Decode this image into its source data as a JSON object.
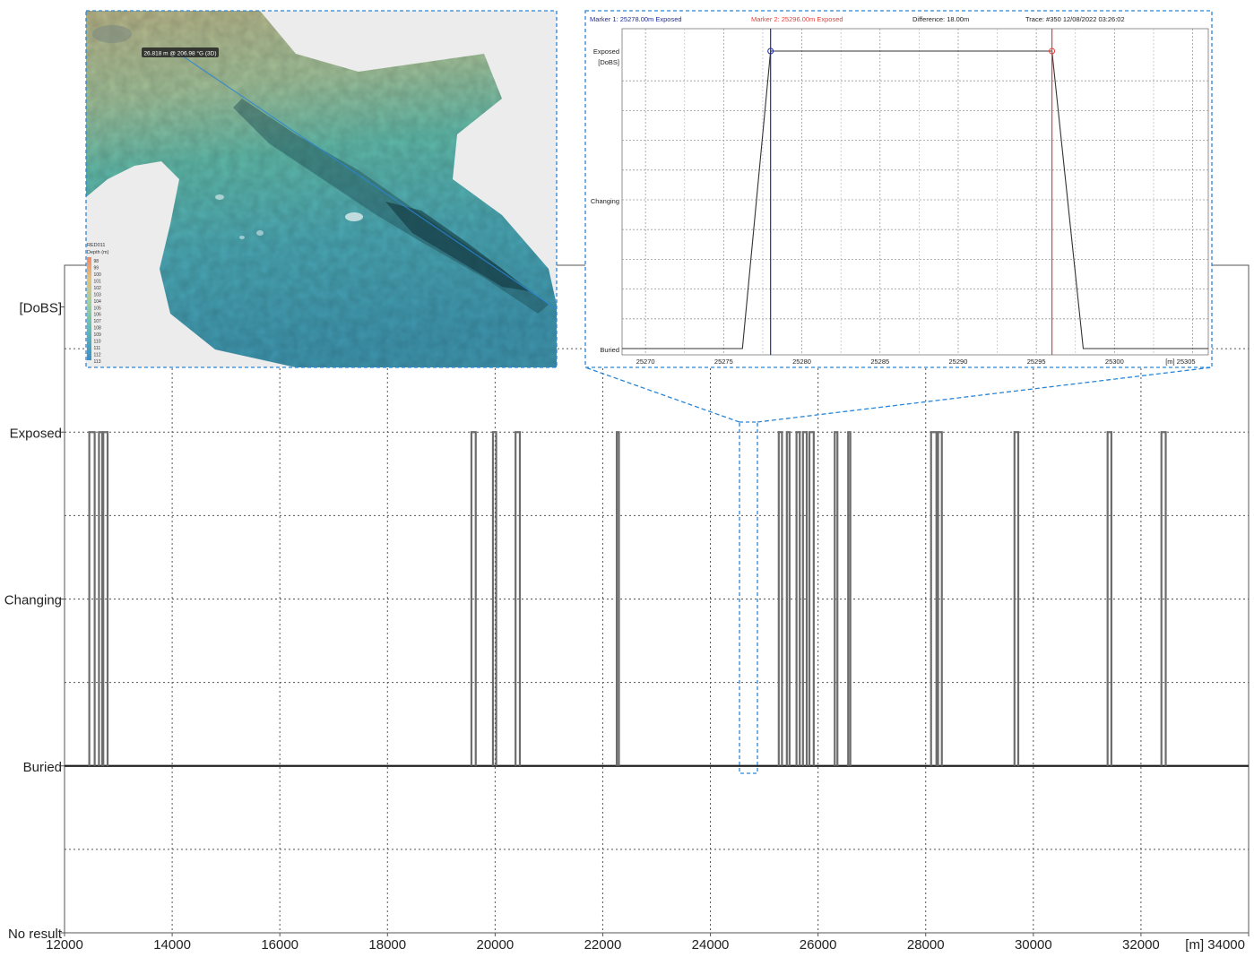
{
  "main_chart": {
    "x_range": [
      12000,
      34000
    ],
    "y_levels": [
      "No result",
      "Buried",
      "Changing",
      "Exposed",
      "[DoBS]"
    ],
    "y_tick_labels": [
      {
        "label": "No result",
        "level": 0
      },
      {
        "label": "Buried",
        "level": 2
      },
      {
        "label": "Changing",
        "level": 4
      },
      {
        "label": "Exposed",
        "level": 6
      },
      {
        "label": "[DoBS]",
        "level": 7.5
      }
    ],
    "x_tick_labels": [
      "12000",
      "14000",
      "16000",
      "18000",
      "20000",
      "22000",
      "24000",
      "26000",
      "28000",
      "30000",
      "32000",
      "[m] 34000"
    ],
    "x_ticks": [
      12000,
      14000,
      16000,
      18000,
      20000,
      22000,
      24000,
      26000,
      28000,
      30000,
      32000,
      34000
    ],
    "spikes_start_end": [
      [
        12460,
        12560
      ],
      [
        12640,
        12700
      ],
      [
        12720,
        12800
      ],
      [
        19560,
        19640
      ],
      [
        19960,
        20020
      ],
      [
        20380,
        20460
      ],
      [
        22260,
        22300
      ],
      [
        25270,
        25330
      ],
      [
        25420,
        25470
      ],
      [
        25600,
        25660
      ],
      [
        25720,
        25790
      ],
      [
        25840,
        25920
      ],
      [
        26310,
        26360
      ],
      [
        26560,
        26600
      ],
      [
        28100,
        28200
      ],
      [
        28230,
        28300
      ],
      [
        29650,
        29720
      ],
      [
        31380,
        31450
      ],
      [
        32380,
        32460
      ]
    ]
  },
  "inset_chart": {
    "header": {
      "marker1": "Marker 1: 25278.00m Exposed",
      "marker2": "Marker 2: 25296.00m Exposed",
      "difference": "Difference: 18.00m",
      "trace": "Trace: #350 12/08/2022 03:26:02"
    },
    "y_labels": {
      "exposed": "Exposed",
      "dobs": "[DoBS]",
      "changing": "Changing",
      "buried": "Buried"
    },
    "x_tick_labels": [
      "25270",
      "25275",
      "25280",
      "25285",
      "25290",
      "25295",
      "25300",
      "[m] 25305"
    ],
    "x_ticks": [
      25270,
      25275,
      25280,
      25285,
      25290,
      25295,
      25300,
      25305
    ],
    "x_range": [
      25268.5,
      25306
    ],
    "profile": [
      [
        25268.5,
        "Buried"
      ],
      [
        25276.2,
        "Buried"
      ],
      [
        25278,
        "Exposed"
      ],
      [
        25296,
        "Exposed"
      ],
      [
        25298,
        "Buried"
      ],
      [
        25306,
        "Buried"
      ]
    ],
    "marker1_x": 25278,
    "marker2_x": 25296,
    "colors": {
      "marker1": "#1f2e9e",
      "marker2": "#e8403a",
      "frame": "#2a86d6"
    }
  },
  "map_inset": {
    "callout": "26.818 m @ 206.98 °G (3D)",
    "legend_title": "RED011",
    "legend_subtitle": "Depth (m)",
    "legend_values": [
      "98",
      "99",
      "100",
      "101",
      "102",
      "103",
      "104",
      "105",
      "106",
      "107",
      "108",
      "109",
      "110",
      "111",
      "112",
      "113"
    ]
  }
}
